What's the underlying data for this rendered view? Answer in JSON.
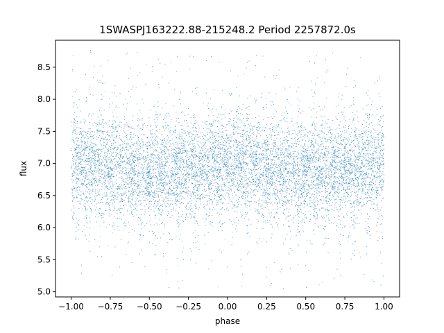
{
  "chart_data": {
    "type": "scatter",
    "title": "1SWASPJ163222.88-215248.2 Period 2257872.0s",
    "xlabel": "phase",
    "ylabel": "flux",
    "xlim": [
      -1.1,
      1.1
    ],
    "ylim": [
      4.92,
      8.92
    ],
    "xticks": [
      -1.0,
      -0.75,
      -0.5,
      -0.25,
      0.0,
      0.25,
      0.5,
      0.75,
      1.0
    ],
    "xtick_labels": [
      "−1.00",
      "−0.75",
      "−0.50",
      "−0.25",
      "0.00",
      "0.25",
      "0.50",
      "0.75",
      "1.00"
    ],
    "yticks": [
      5.0,
      5.5,
      6.0,
      6.5,
      7.0,
      7.5,
      8.0,
      8.5
    ],
    "ytick_labels": [
      "5.0",
      "5.5",
      "6.0",
      "6.5",
      "7.0",
      "7.5",
      "8.0",
      "8.5"
    ],
    "grid": false,
    "point_color": "#1f77b4",
    "phase_range": [
      -1.0,
      1.0
    ],
    "profile_phase": [
      -1.0,
      -0.75,
      -0.5,
      -0.25,
      0.0,
      0.25,
      0.5,
      0.75,
      1.0
    ],
    "profile_median_flux": [
      7.0,
      6.95,
      6.85,
      6.9,
      7.0,
      6.95,
      6.85,
      6.9,
      7.0
    ],
    "typical_flux_band": [
      6.4,
      7.6
    ],
    "flux_extremes": [
      5.05,
      8.8
    ]
  }
}
